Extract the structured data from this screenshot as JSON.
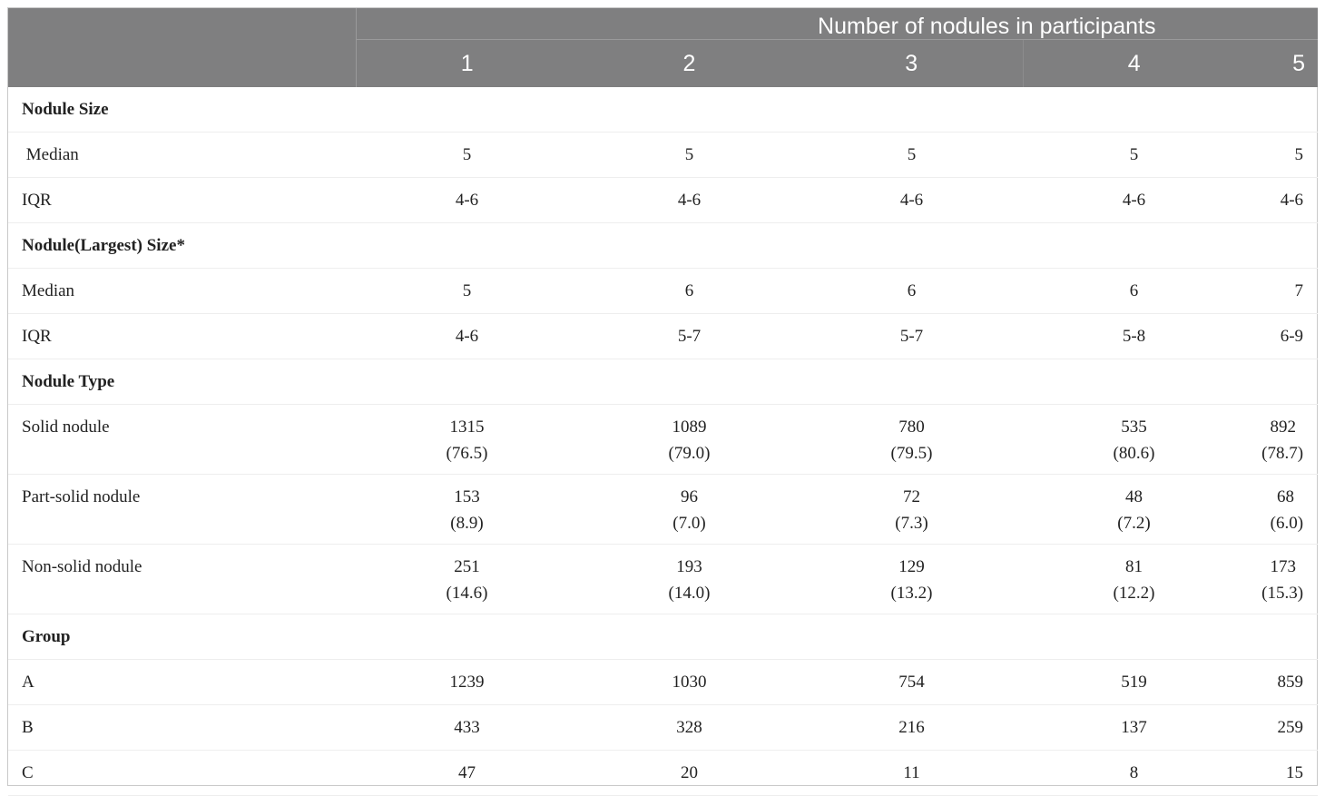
{
  "header": {
    "spanning_title": "Number of nodules in participants",
    "columns": [
      "1",
      "2",
      "3",
      "4",
      "5"
    ]
  },
  "sections": [
    {
      "title": "Nodule Size",
      "rows": [
        {
          "label": " Median",
          "values": [
            "5",
            "5",
            "5",
            "5",
            "5"
          ]
        },
        {
          "label": "IQR",
          "values": [
            "4-6",
            "4-6",
            "4-6",
            "4-6",
            "4-6"
          ]
        }
      ]
    },
    {
      "title": "Nodule(Largest) Size*",
      "rows": [
        {
          "label": "Median",
          "values": [
            "5",
            "6",
            "6",
            "6",
            "7"
          ]
        },
        {
          "label": "IQR",
          "values": [
            "4-6",
            "5-7",
            "5-7",
            "5-8",
            "6-9"
          ]
        }
      ]
    },
    {
      "title": "Nodule Type",
      "rows": [
        {
          "label": "Solid nodule",
          "values": [
            "1315",
            "1089",
            "780",
            "535",
            "892"
          ],
          "pcts": [
            "(76.5)",
            "(79.0)",
            "(79.5)",
            "(80.6)",
            "(78.7)"
          ]
        },
        {
          "label": "Part-solid nodule",
          "values": [
            "153",
            "96",
            "72",
            "48",
            "68"
          ],
          "pcts": [
            "(8.9)",
            "(7.0)",
            "(7.3)",
            "(7.2)",
            "(6.0)"
          ]
        },
        {
          "label": "Non-solid nodule",
          "values": [
            "251",
            "193",
            "129",
            "81",
            "173"
          ],
          "pcts": [
            "(14.6)",
            "(14.0)",
            "(13.2)",
            "(12.2)",
            "(15.3)"
          ]
        }
      ]
    },
    {
      "title": "Group",
      "rows": [
        {
          "label": "A",
          "values": [
            "1239",
            "1030",
            "754",
            "519",
            "859"
          ]
        },
        {
          "label": "B",
          "values": [
            "433",
            "328",
            "216",
            "137",
            "259"
          ]
        },
        {
          "label": "C",
          "values": [
            "47",
            "20",
            "11",
            "8",
            "15"
          ]
        }
      ]
    }
  ]
}
